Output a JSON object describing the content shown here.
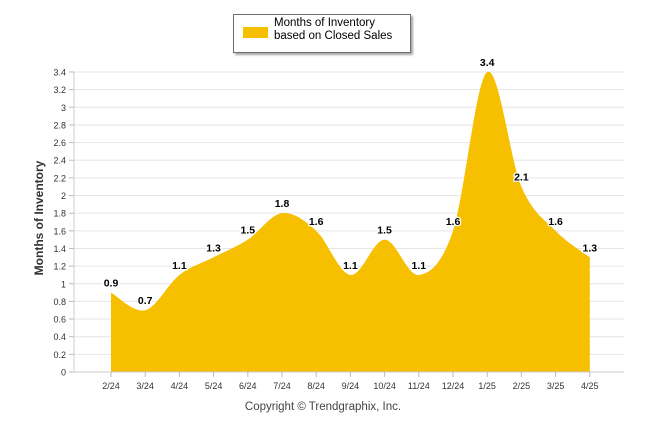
{
  "legend": {
    "label": "Months of Inventory based on Closed Sales",
    "color": "#F6C000"
  },
  "footer": {
    "copyright": "Copyright © Trendgraphix, Inc."
  },
  "chart_data": {
    "type": "area",
    "categories": [
      "2/24",
      "3/24",
      "4/24",
      "5/24",
      "6/24",
      "7/24",
      "8/24",
      "9/24",
      "10/24",
      "11/24",
      "12/24",
      "1/25",
      "2/25",
      "3/25",
      "4/25"
    ],
    "series": [
      {
        "name": "Months of Inventory based on Closed Sales",
        "values": [
          0.9,
          0.7,
          1.1,
          1.3,
          1.5,
          1.8,
          1.6,
          1.1,
          1.5,
          1.1,
          1.6,
          3.4,
          2.1,
          1.6,
          1.3
        ]
      }
    ],
    "data_labels": [
      "0.9",
      "0.7",
      "1.1",
      "1.3",
      "1.5",
      "1.8",
      "1.6",
      "1.1",
      "1.5",
      "1.1",
      "1.6",
      "3.4",
      "2.1",
      "1.6",
      "1.3"
    ],
    "title": "",
    "xlabel": "",
    "ylabel": "Months of Inventory",
    "ylim": [
      0,
      3.4
    ],
    "yticks": [
      "0",
      "0.2",
      "0.4",
      "0.6",
      "0.8",
      "1",
      "1.2",
      "1.4",
      "1.6",
      "1.8",
      "2",
      "2.2",
      "2.4",
      "2.6",
      "2.8",
      "3",
      "3.2",
      "3.4"
    ],
    "grid": true,
    "legend_position": "top-center",
    "fill_color": "#F6C000"
  }
}
